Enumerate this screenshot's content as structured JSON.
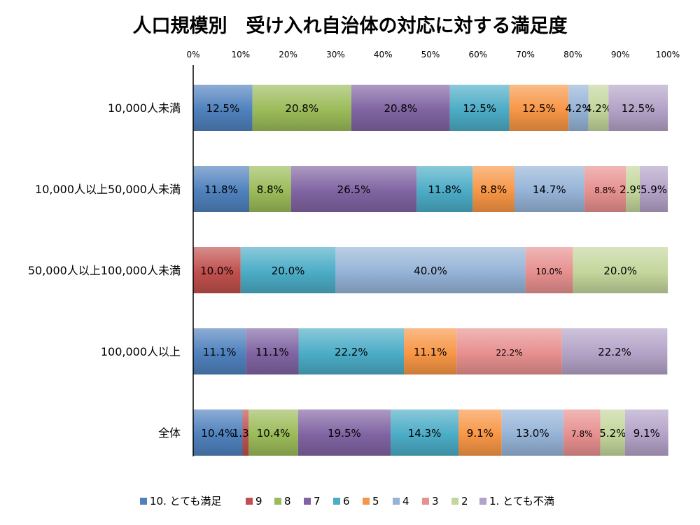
{
  "chart_data": {
    "type": "bar",
    "orientation": "horizontal",
    "stacked": "percent",
    "title": "人口規模別　受け入れ自治体の対応に対する満足度",
    "xlim": [
      0,
      100
    ],
    "x_ticks": [
      "0%",
      "10%",
      "20%",
      "30%",
      "40%",
      "50%",
      "60%",
      "70%",
      "80%",
      "90%",
      "100%"
    ],
    "x_axis_position": "top",
    "grid": false,
    "legend_position": "bottom",
    "categories": [
      "10,000人未満",
      "10,000人以上50,000人未満",
      "50,000人以上100,000人未満",
      "100,000人以上",
      "全体"
    ],
    "series": [
      {
        "name": "10. とても満足",
        "color": "#4f81bd",
        "values": [
          12.5,
          11.8,
          0,
          11.1,
          10.4
        ],
        "labels": [
          "12.5%",
          "11.8%",
          "",
          "11.1%",
          "10.4%"
        ]
      },
      {
        "name": "9",
        "color": "#c0504d",
        "values": [
          0,
          0,
          10.0,
          0,
          1.3
        ],
        "labels": [
          "",
          "",
          "10.0%",
          "",
          "1.3%"
        ]
      },
      {
        "name": "8",
        "color": "#9bbb59",
        "values": [
          20.8,
          8.8,
          0,
          0,
          10.4
        ],
        "labels": [
          "20.8%",
          "8.8%",
          "",
          "",
          "10.4%"
        ]
      },
      {
        "name": "7",
        "color": "#8064a2",
        "values": [
          20.8,
          26.5,
          0,
          11.1,
          19.5
        ],
        "labels": [
          "20.8%",
          "26.5%",
          "",
          "11.1%",
          "19.5%"
        ]
      },
      {
        "name": "6",
        "color": "#4bacc6",
        "values": [
          12.5,
          11.8,
          20.0,
          22.2,
          14.3
        ],
        "labels": [
          "12.5%",
          "11.8%",
          "20.0%",
          "22.2%",
          "14.3%"
        ]
      },
      {
        "name": "5",
        "color": "#f79646",
        "values": [
          12.5,
          8.8,
          0,
          11.1,
          9.1
        ],
        "labels": [
          "12.5%",
          "8.8%",
          "",
          "11.1%",
          "9.1%"
        ]
      },
      {
        "name": "4",
        "color": "#95b3d7",
        "values": [
          4.2,
          14.7,
          40.0,
          0,
          13.0
        ],
        "labels": [
          "4.2%",
          "14.7%",
          "40.0%",
          "",
          "13.0%"
        ]
      },
      {
        "name": "3",
        "color": "#e6908f",
        "values": [
          0,
          8.8,
          10.0,
          22.2,
          7.8
        ],
        "labels": [
          "",
          "8.8%",
          "10.0%",
          "22.2%",
          "7.8%"
        ]
      },
      {
        "name": "2",
        "color": "#c3d69b",
        "values": [
          4.2,
          2.9,
          20.0,
          0,
          5.2
        ],
        "labels": [
          "4.2%",
          "2.9%",
          "20.0%",
          "",
          "5.2%"
        ]
      },
      {
        "name": "1. とても不満",
        "color": "#b3a2c7",
        "values": [
          12.5,
          5.9,
          0,
          22.2,
          9.1
        ],
        "labels": [
          "12.5%",
          "5.9%",
          "",
          "22.2%",
          "9.1%"
        ]
      }
    ],
    "small_labels": [
      [
        1,
        7
      ],
      [
        2,
        3
      ],
      [
        2,
        7
      ],
      [
        3,
        7
      ],
      [
        4,
        7
      ]
    ]
  }
}
